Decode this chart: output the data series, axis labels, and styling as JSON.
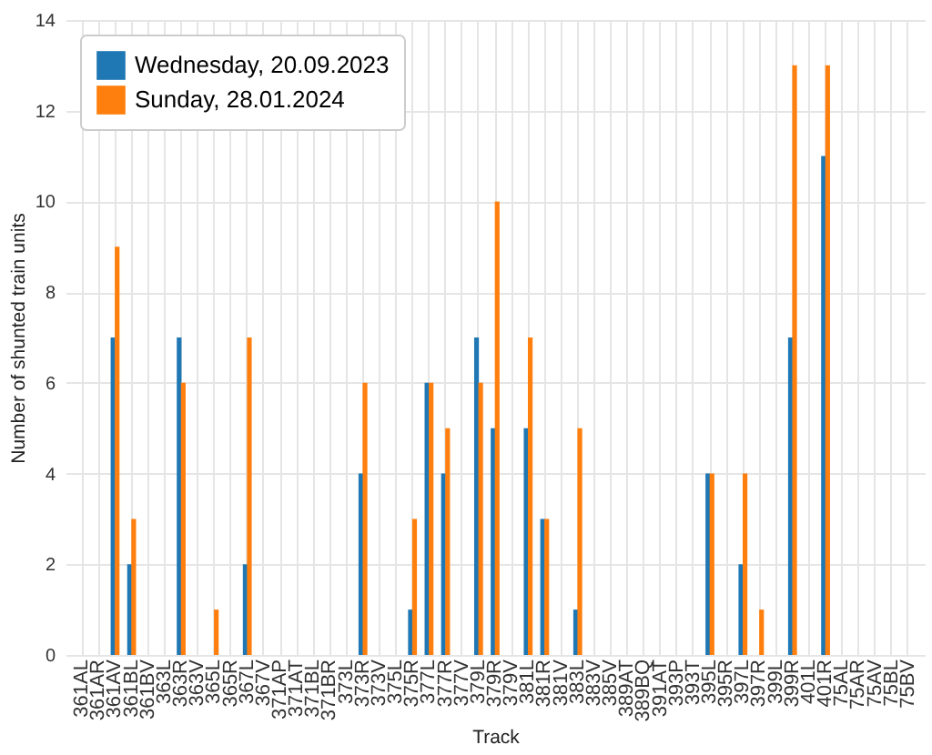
{
  "chart_data": {
    "type": "bar",
    "xlabel": "Track",
    "ylabel": "Number of shunted train units",
    "categories": [
      "361AL",
      "361AR",
      "361AV",
      "361BL",
      "361BV",
      "363L",
      "363R",
      "363V",
      "365L",
      "365R",
      "367L",
      "367V",
      "371AP",
      "371AT",
      "371BL",
      "371BR",
      "373L",
      "373R",
      "373V",
      "375L",
      "375R",
      "377L",
      "377R",
      "377V",
      "379L",
      "379R",
      "379V",
      "381L",
      "381R",
      "381V",
      "383L",
      "383V",
      "385V",
      "389AT",
      "389BQ",
      "391AT",
      "393P",
      "393T",
      "395L",
      "395R",
      "397L",
      "397R",
      "399L",
      "399R",
      "401L",
      "401R",
      "75AL",
      "75AR",
      "75AV",
      "75BL",
      "75BV"
    ],
    "series": [
      {
        "name": "Wednesday, 20.09.2023",
        "color": "#1f77b4",
        "values": [
          0,
          0,
          7,
          2,
          0,
          0,
          7,
          0,
          0,
          0,
          2,
          0,
          0,
          0,
          0,
          0,
          0,
          4,
          0,
          0,
          1,
          6,
          4,
          0,
          7,
          5,
          0,
          5,
          3,
          0,
          1,
          0,
          0,
          0,
          0,
          0,
          0,
          0,
          4,
          0,
          2,
          0,
          0,
          7,
          0,
          11,
          0,
          0,
          0,
          0,
          0
        ]
      },
      {
        "name": "Sunday, 28.01.2024",
        "color": "#ff7f0e",
        "values": [
          0,
          0,
          9,
          3,
          0,
          0,
          6,
          0,
          1,
          0,
          7,
          0,
          0,
          0,
          0,
          0,
          0,
          6,
          0,
          0,
          3,
          6,
          5,
          0,
          6,
          10,
          0,
          7,
          3,
          0,
          5,
          0,
          0,
          0,
          0,
          0,
          0,
          0,
          4,
          0,
          4,
          1,
          0,
          13,
          0,
          13,
          0,
          0,
          0,
          0,
          0
        ]
      }
    ],
    "ylim": [
      0,
      14
    ],
    "yticks": [
      0,
      2,
      4,
      6,
      8,
      10,
      12,
      14
    ],
    "grid": true,
    "legend": "top left"
  }
}
